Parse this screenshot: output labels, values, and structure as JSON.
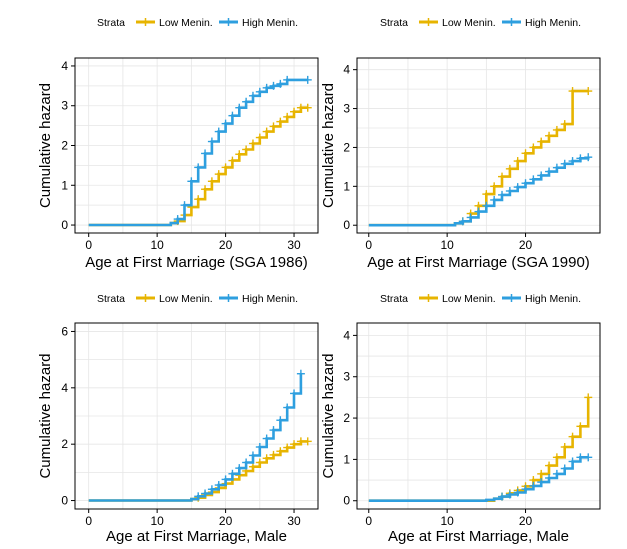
{
  "colors": {
    "low": "#E7B400",
    "high": "#2E9FDF",
    "grid": "#E6E6E6",
    "frame": "#000000"
  },
  "chart_data": [
    {
      "type": "line",
      "step": true,
      "legend_title": "Strata",
      "legend_position": "top",
      "xlabel": "Age at First Marriage (SGA 1986)",
      "ylabel": "Cumulative hazard",
      "xlim": [
        -2,
        33.5
      ],
      "ylim": [
        -0.2,
        4.2
      ],
      "xticks": [
        0,
        10,
        20,
        30
      ],
      "yticks": [
        0,
        1,
        2,
        3,
        4
      ],
      "grid": true,
      "series": [
        {
          "name": "Low Menin.",
          "color": "#E7B400",
          "x": [
            0,
            12,
            13,
            14,
            15,
            16,
            17,
            18,
            19,
            20,
            21,
            22,
            23,
            24,
            25,
            26,
            27,
            28,
            29,
            30,
            31,
            32
          ],
          "y": [
            0,
            0.05,
            0.1,
            0.25,
            0.45,
            0.65,
            0.9,
            1.1,
            1.28,
            1.45,
            1.62,
            1.78,
            1.9,
            2.05,
            2.2,
            2.35,
            2.48,
            2.6,
            2.72,
            2.85,
            2.95,
            2.95
          ]
        },
        {
          "name": "High Menin.",
          "color": "#2E9FDF",
          "x": [
            0,
            12,
            13,
            14,
            15,
            16,
            17,
            18,
            19,
            20,
            21,
            22,
            23,
            24,
            25,
            26,
            27,
            28,
            29,
            32
          ],
          "y": [
            0,
            0.05,
            0.15,
            0.5,
            1.1,
            1.45,
            1.8,
            2.1,
            2.35,
            2.55,
            2.75,
            2.95,
            3.1,
            3.25,
            3.35,
            3.45,
            3.5,
            3.55,
            3.65,
            3.65
          ]
        }
      ]
    },
    {
      "type": "line",
      "step": true,
      "legend_title": "Strata",
      "legend_position": "top",
      "xlabel": "Age at First Marriage (SGA 1990)",
      "ylabel": "Cumulative hazard",
      "xlim": [
        -1.5,
        29.5
      ],
      "ylim": [
        -0.2,
        4.3
      ],
      "xticks": [
        0,
        10,
        20
      ],
      "yticks": [
        0,
        1,
        2,
        3,
        4
      ],
      "grid": true,
      "series": [
        {
          "name": "Low Menin.",
          "color": "#E7B400",
          "x": [
            0,
            11,
            12,
            13,
            14,
            15,
            16,
            17,
            18,
            19,
            20,
            21,
            22,
            23,
            24,
            25,
            26,
            28
          ],
          "y": [
            0,
            0.05,
            0.1,
            0.3,
            0.5,
            0.8,
            1.0,
            1.25,
            1.45,
            1.65,
            1.85,
            2.0,
            2.15,
            2.3,
            2.45,
            2.6,
            3.45,
            3.45
          ]
        },
        {
          "name": "High Menin.",
          "color": "#2E9FDF",
          "x": [
            0,
            11,
            12,
            13,
            14,
            15,
            16,
            17,
            18,
            19,
            20,
            21,
            22,
            23,
            24,
            25,
            26,
            27,
            28
          ],
          "y": [
            0,
            0.05,
            0.1,
            0.2,
            0.35,
            0.5,
            0.65,
            0.78,
            0.88,
            0.98,
            1.08,
            1.18,
            1.28,
            1.38,
            1.48,
            1.58,
            1.65,
            1.72,
            1.75
          ]
        }
      ]
    },
    {
      "type": "line",
      "step": true,
      "legend_title": "Strata",
      "legend_position": "top",
      "xlabel": "Age at First Marriage, Male",
      "ylabel": "Cumulative hazard",
      "xlim": [
        -2,
        33.5
      ],
      "ylim": [
        -0.3,
        6.3
      ],
      "xticks": [
        0,
        10,
        20,
        30
      ],
      "yticks": [
        0,
        2,
        4,
        6
      ],
      "grid": true,
      "series": [
        {
          "name": "Low Menin.",
          "color": "#E7B400",
          "x": [
            0,
            15,
            16,
            17,
            18,
            19,
            20,
            21,
            22,
            23,
            24,
            25,
            26,
            27,
            28,
            29,
            30,
            31,
            32
          ],
          "y": [
            0,
            0.05,
            0.1,
            0.2,
            0.3,
            0.45,
            0.6,
            0.75,
            0.9,
            1.05,
            1.2,
            1.35,
            1.5,
            1.62,
            1.75,
            1.88,
            2.0,
            2.1,
            2.1
          ]
        },
        {
          "name": "High Menin.",
          "color": "#2E9FDF",
          "x": [
            0,
            15,
            16,
            17,
            18,
            19,
            20,
            21,
            22,
            23,
            24,
            25,
            26,
            27,
            28,
            29,
            30,
            31
          ],
          "y": [
            0,
            0.05,
            0.15,
            0.25,
            0.4,
            0.55,
            0.75,
            0.95,
            1.15,
            1.35,
            1.6,
            1.9,
            2.2,
            2.5,
            2.85,
            3.3,
            3.8,
            4.5
          ]
        }
      ]
    },
    {
      "type": "line",
      "step": true,
      "legend_title": "Strata",
      "legend_position": "top",
      "xlabel": "Age at First Marriage, Male",
      "ylabel": "Cumulative hazard",
      "xlim": [
        -1.5,
        29.5
      ],
      "ylim": [
        -0.2,
        4.3
      ],
      "xticks": [
        0,
        10,
        20
      ],
      "yticks": [
        0,
        1,
        2,
        3,
        4
      ],
      "grid": true,
      "series": [
        {
          "name": "Low Menin.",
          "color": "#E7B400",
          "x": [
            0,
            16,
            17,
            18,
            19,
            20,
            21,
            22,
            23,
            24,
            25,
            26,
            27,
            28
          ],
          "y": [
            0,
            0.05,
            0.1,
            0.18,
            0.25,
            0.35,
            0.5,
            0.65,
            0.85,
            1.05,
            1.3,
            1.55,
            1.8,
            2.5
          ]
        },
        {
          "name": "High Menin.",
          "color": "#2E9FDF",
          "x": [
            0,
            15,
            16,
            17,
            18,
            19,
            20,
            21,
            22,
            23,
            24,
            25,
            26,
            27,
            28
          ],
          "y": [
            0,
            0.02,
            0.05,
            0.1,
            0.15,
            0.2,
            0.28,
            0.36,
            0.45,
            0.55,
            0.65,
            0.78,
            0.95,
            1.05,
            1.05
          ]
        }
      ]
    }
  ]
}
